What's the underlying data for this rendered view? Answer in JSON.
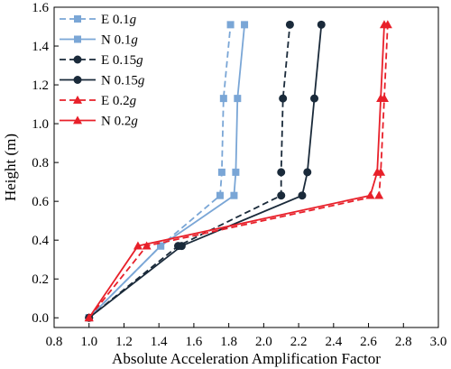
{
  "chart_data": {
    "type": "line",
    "title": "",
    "xlabel": "Absolute Acceleration Amplification Factor",
    "ylabel": "Height (m)",
    "xlim": [
      0.8,
      3.0
    ],
    "ylim": [
      -0.05,
      1.6
    ],
    "xticks": [
      "0.8",
      "1.0",
      "1.2",
      "1.4",
      "1.6",
      "1.8",
      "2.0",
      "2.2",
      "2.4",
      "2.6",
      "2.8",
      "3.0"
    ],
    "yticks": [
      "0.0",
      "0.2",
      "0.4",
      "0.6",
      "0.8",
      "1.0",
      "1.2",
      "1.4",
      "1.6"
    ],
    "grid": false,
    "legend_position": "top-left",
    "series": [
      {
        "name": "E 0.1g",
        "label_prefix": "E 0.1",
        "label_unit": "g",
        "color": "#7aa6d6",
        "dash": true,
        "marker": "square",
        "points": [
          [
            1.0,
            0.0
          ],
          [
            1.41,
            0.37
          ],
          [
            1.75,
            0.63
          ],
          [
            1.76,
            0.75
          ],
          [
            1.77,
            1.13
          ],
          [
            1.81,
            1.51
          ]
        ]
      },
      {
        "name": "N 0.1g",
        "label_prefix": "N 0.1",
        "label_unit": "g",
        "color": "#7aa6d6",
        "dash": false,
        "marker": "square",
        "points": [
          [
            1.0,
            0.0
          ],
          [
            1.41,
            0.37
          ],
          [
            1.83,
            0.63
          ],
          [
            1.84,
            0.75
          ],
          [
            1.85,
            1.13
          ],
          [
            1.89,
            1.51
          ]
        ]
      },
      {
        "name": "E 0.15g",
        "label_prefix": "E 0.15",
        "label_unit": "g",
        "color": "#1a2a3a",
        "dash": true,
        "marker": "circle",
        "points": [
          [
            1.0,
            0.0
          ],
          [
            1.51,
            0.37
          ],
          [
            2.1,
            0.63
          ],
          [
            2.1,
            0.75
          ],
          [
            2.11,
            1.13
          ],
          [
            2.15,
            1.51
          ]
        ]
      },
      {
        "name": "N 0.15g",
        "label_prefix": "N 0.15",
        "label_unit": "g",
        "color": "#1a2a3a",
        "dash": false,
        "marker": "circle",
        "points": [
          [
            1.0,
            0.0
          ],
          [
            1.53,
            0.37
          ],
          [
            2.22,
            0.63
          ],
          [
            2.25,
            0.75
          ],
          [
            2.29,
            1.13
          ],
          [
            2.33,
            1.51
          ]
        ]
      },
      {
        "name": "E 0.2g",
        "label_prefix": "E 0.2",
        "label_unit": "g",
        "color": "#e8202a",
        "dash": true,
        "marker": "triangle",
        "points": [
          [
            1.0,
            0.0
          ],
          [
            1.33,
            0.37
          ],
          [
            2.66,
            0.63
          ],
          [
            2.67,
            0.75
          ],
          [
            2.69,
            1.13
          ],
          [
            2.71,
            1.51
          ]
        ]
      },
      {
        "name": "N 0.2g",
        "label_prefix": "N 0.2",
        "label_unit": "g",
        "color": "#e8202a",
        "dash": false,
        "marker": "triangle",
        "points": [
          [
            1.0,
            0.0
          ],
          [
            1.28,
            0.37
          ],
          [
            2.61,
            0.63
          ],
          [
            2.65,
            0.75
          ],
          [
            2.67,
            1.13
          ],
          [
            2.69,
            1.51
          ]
        ]
      }
    ]
  }
}
